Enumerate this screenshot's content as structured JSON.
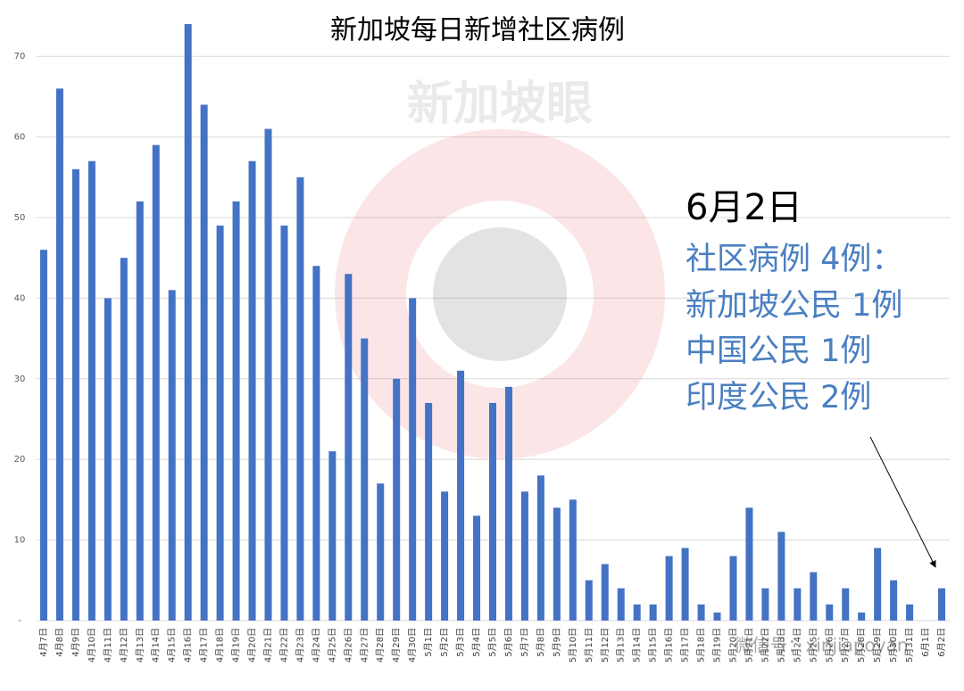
{
  "chart_data": {
    "type": "bar",
    "title": "新加坡每日新增社区病例",
    "categories": [
      "4月7日",
      "4月8日",
      "4月9日",
      "4月10日",
      "4月11日",
      "4月12日",
      "4月13日",
      "4月14日",
      "4月15日",
      "4月16日",
      "4月17日",
      "4月18日",
      "4月19日",
      "4月20日",
      "4月21日",
      "4月22日",
      "4月23日",
      "4月24日",
      "4月25日",
      "4月26日",
      "4月27日",
      "4月28日",
      "4月29日",
      "4月30日",
      "5月1日",
      "5月2日",
      "5月3日",
      "5月4日",
      "5月5日",
      "5月6日",
      "5月7日",
      "5月8日",
      "5月9日",
      "5月10日",
      "5月11日",
      "5月12日",
      "5月13日",
      "5月14日",
      "5月15日",
      "5月16日",
      "5月17日",
      "5月18日",
      "5月19日",
      "5月20日",
      "5月21日",
      "5月22日",
      "5月23日",
      "5月24日",
      "5月25日",
      "5月26日",
      "5月27日",
      "5月28日",
      "5月29日",
      "5月30日",
      "5月31日",
      "6月1日",
      "6月2日"
    ],
    "values": [
      46,
      66,
      56,
      57,
      40,
      45,
      52,
      59,
      41,
      74,
      64,
      49,
      52,
      57,
      61,
      49,
      55,
      44,
      21,
      43,
      35,
      17,
      30,
      40,
      27,
      16,
      31,
      13,
      27,
      29,
      16,
      18,
      14,
      15,
      5,
      7,
      4,
      2,
      2,
      8,
      9,
      2,
      1,
      8,
      14,
      4,
      11,
      4,
      6,
      2,
      4,
      1,
      9,
      5,
      2,
      0,
      4
    ],
    "color": "#4472c4",
    "ylim": [
      0,
      75
    ],
    "yticks": [
      {
        "value": 0,
        "label": "-"
      },
      10,
      20,
      30,
      40,
      50,
      60,
      70
    ],
    "grid": true,
    "annotation": {
      "date": "6月2日",
      "lines": [
        "社区病例 4例：",
        "新加坡公民 1例",
        "中国公民 1例",
        "印度公民 2例"
      ]
    },
    "watermarks": [
      "新加坡眼",
      "微信号：xinjiapoyan"
    ]
  }
}
